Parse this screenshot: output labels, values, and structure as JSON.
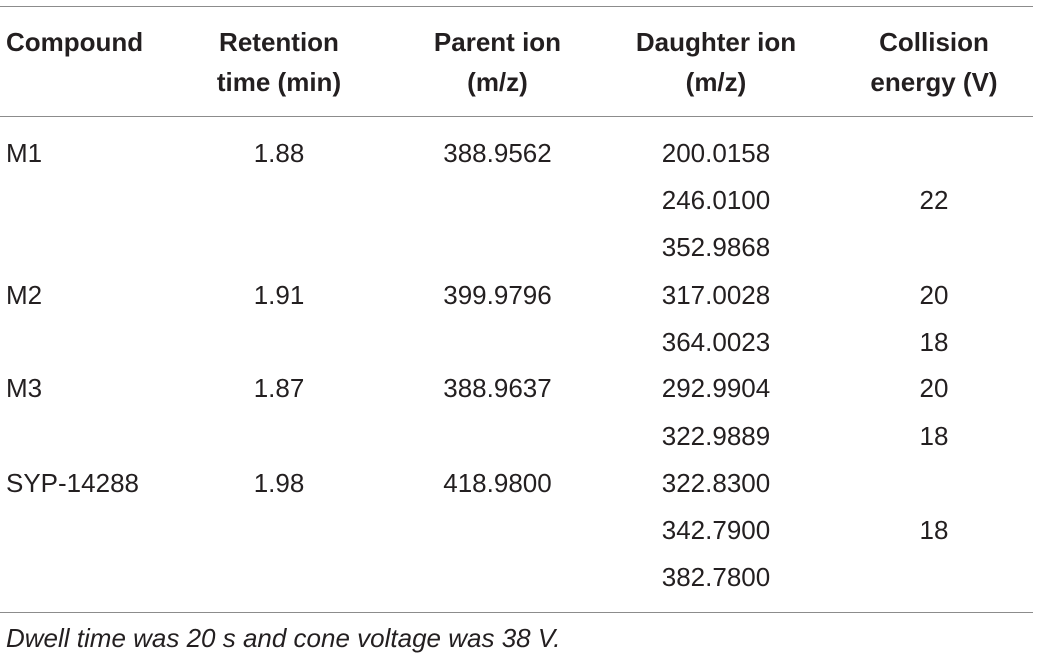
{
  "table": {
    "headers": {
      "compound": "Compound",
      "retention_line1": "Retention",
      "retention_line2": "time (min)",
      "parent_line1": "Parent ion",
      "parent_line2": "(m/z)",
      "daughter_line1": "Daughter ion",
      "daughter_line2": "(m/z)",
      "collision_line1": "Collision",
      "collision_line2": "energy (V)"
    },
    "rows": [
      {
        "compound": "M1",
        "retention": "1.88",
        "parent": "388.9562",
        "daughter": "200.0158",
        "collision": ""
      },
      {
        "compound": "",
        "retention": "",
        "parent": "",
        "daughter": "246.0100",
        "collision": "22"
      },
      {
        "compound": "",
        "retention": "",
        "parent": "",
        "daughter": "352.9868",
        "collision": ""
      },
      {
        "compound": "M2",
        "retention": "1.91",
        "parent": "399.9796",
        "daughter": "317.0028",
        "collision": "20"
      },
      {
        "compound": "",
        "retention": "",
        "parent": "",
        "daughter": "364.0023",
        "collision": "18"
      },
      {
        "compound": "M3",
        "retention": "1.87",
        "parent": "388.9637",
        "daughter": "292.9904",
        "collision": "20"
      },
      {
        "compound": "",
        "retention": "",
        "parent": "",
        "daughter": "322.9889",
        "collision": "18"
      },
      {
        "compound": "SYP-14288",
        "retention": "1.98",
        "parent": "418.9800",
        "daughter": "322.8300",
        "collision": ""
      },
      {
        "compound": "",
        "retention": "",
        "parent": "",
        "daughter": "342.7900",
        "collision": "18"
      },
      {
        "compound": "",
        "retention": "",
        "parent": "",
        "daughter": "382.7800",
        "collision": ""
      }
    ],
    "footnote": "Dwell time was 20 s and cone voltage was 38 V."
  }
}
